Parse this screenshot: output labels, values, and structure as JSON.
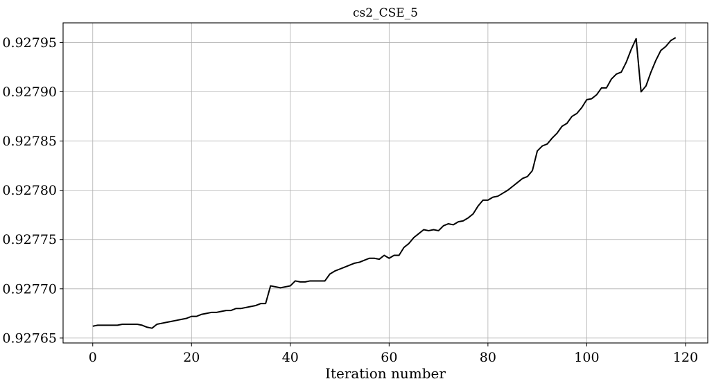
{
  "chart_data": {
    "type": "line",
    "title": "cs2_CSE_5",
    "xlabel": "Iteration number",
    "ylabel": "",
    "xlim": [
      -6,
      124.5
    ],
    "ylim": [
      0.927645,
      0.92797
    ],
    "xticks": [
      0,
      20,
      40,
      60,
      80,
      100,
      120
    ],
    "xtick_labels": [
      "0",
      "20",
      "40",
      "60",
      "80",
      "100",
      "120"
    ],
    "yticks": [
      0.92765,
      0.9277,
      0.92775,
      0.9278,
      0.92785,
      0.9279,
      0.92795
    ],
    "ytick_labels": [
      "0.92765",
      "0.92770",
      "0.92775",
      "0.92780",
      "0.92785",
      "0.92790",
      "0.92795"
    ],
    "grid": true,
    "series": [
      {
        "color": "#000000",
        "x": [
          0,
          1,
          2,
          3,
          4,
          5,
          6,
          7,
          8,
          9,
          10,
          11,
          12,
          13,
          14,
          15,
          16,
          17,
          18,
          19,
          20,
          21,
          22,
          23,
          24,
          25,
          26,
          27,
          28,
          29,
          30,
          31,
          32,
          33,
          34,
          35,
          36,
          37,
          38,
          39,
          40,
          41,
          42,
          43,
          44,
          45,
          46,
          47,
          48,
          49,
          50,
          51,
          52,
          53,
          54,
          55,
          56,
          57,
          58,
          59,
          60,
          61,
          62,
          63,
          64,
          65,
          66,
          67,
          68,
          69,
          70,
          71,
          72,
          73,
          74,
          75,
          76,
          77,
          78,
          79,
          80,
          81,
          82,
          83,
          84,
          85,
          86,
          87,
          88,
          89,
          90,
          91,
          92,
          93,
          94,
          95,
          96,
          97,
          98,
          99,
          100,
          101,
          102,
          103,
          104,
          105,
          106,
          107,
          108,
          109,
          110,
          111,
          112,
          113,
          114,
          115,
          116,
          117,
          118
        ],
        "values": [
          0.927662,
          0.927663,
          0.927663,
          0.927663,
          0.927663,
          0.927663,
          0.927664,
          0.927664,
          0.927664,
          0.927664,
          0.927663,
          0.927661,
          0.92766,
          0.927664,
          0.927665,
          0.927666,
          0.927667,
          0.927668,
          0.927669,
          0.92767,
          0.927672,
          0.927672,
          0.927674,
          0.927675,
          0.927676,
          0.927676,
          0.927677,
          0.927678,
          0.927678,
          0.92768,
          0.92768,
          0.927681,
          0.927682,
          0.927683,
          0.927685,
          0.927685,
          0.927703,
          0.927702,
          0.927701,
          0.927702,
          0.927703,
          0.927708,
          0.927707,
          0.927707,
          0.927708,
          0.927708,
          0.927708,
          0.927708,
          0.927715,
          0.927718,
          0.92772,
          0.927722,
          0.927724,
          0.927726,
          0.927727,
          0.927729,
          0.927731,
          0.927731,
          0.92773,
          0.927734,
          0.927731,
          0.927734,
          0.927734,
          0.927742,
          0.927746,
          0.927752,
          0.927756,
          0.92776,
          0.927759,
          0.92776,
          0.927759,
          0.927764,
          0.927766,
          0.927765,
          0.927768,
          0.927769,
          0.927772,
          0.927776,
          0.927784,
          0.92779,
          0.92779,
          0.927793,
          0.927794,
          0.927797,
          0.9278,
          0.927804,
          0.927808,
          0.927812,
          0.927814,
          0.92782,
          0.92784,
          0.927845,
          0.927847,
          0.927853,
          0.927858,
          0.927865,
          0.927868,
          0.927875,
          0.927878,
          0.927884,
          0.927892,
          0.927893,
          0.927897,
          0.927904,
          0.927904,
          0.927913,
          0.927918,
          0.92792,
          0.92793,
          0.927943,
          0.927954,
          0.9279,
          0.927906,
          0.92792,
          0.927932,
          0.927942,
          0.927946,
          0.927952,
          0.927955
        ]
      }
    ]
  }
}
